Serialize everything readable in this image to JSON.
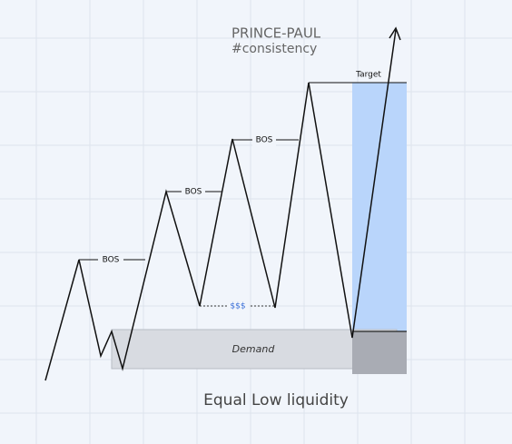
{
  "header": {
    "title": "PRINCE-PAUL",
    "subtitle": "#consistency"
  },
  "labels": {
    "bos": [
      "BOS",
      "BOS",
      "BOS"
    ],
    "liquidity": "$$$",
    "zone": "Demand",
    "target": "Target",
    "caption": "Equal Low liquidity"
  }
}
